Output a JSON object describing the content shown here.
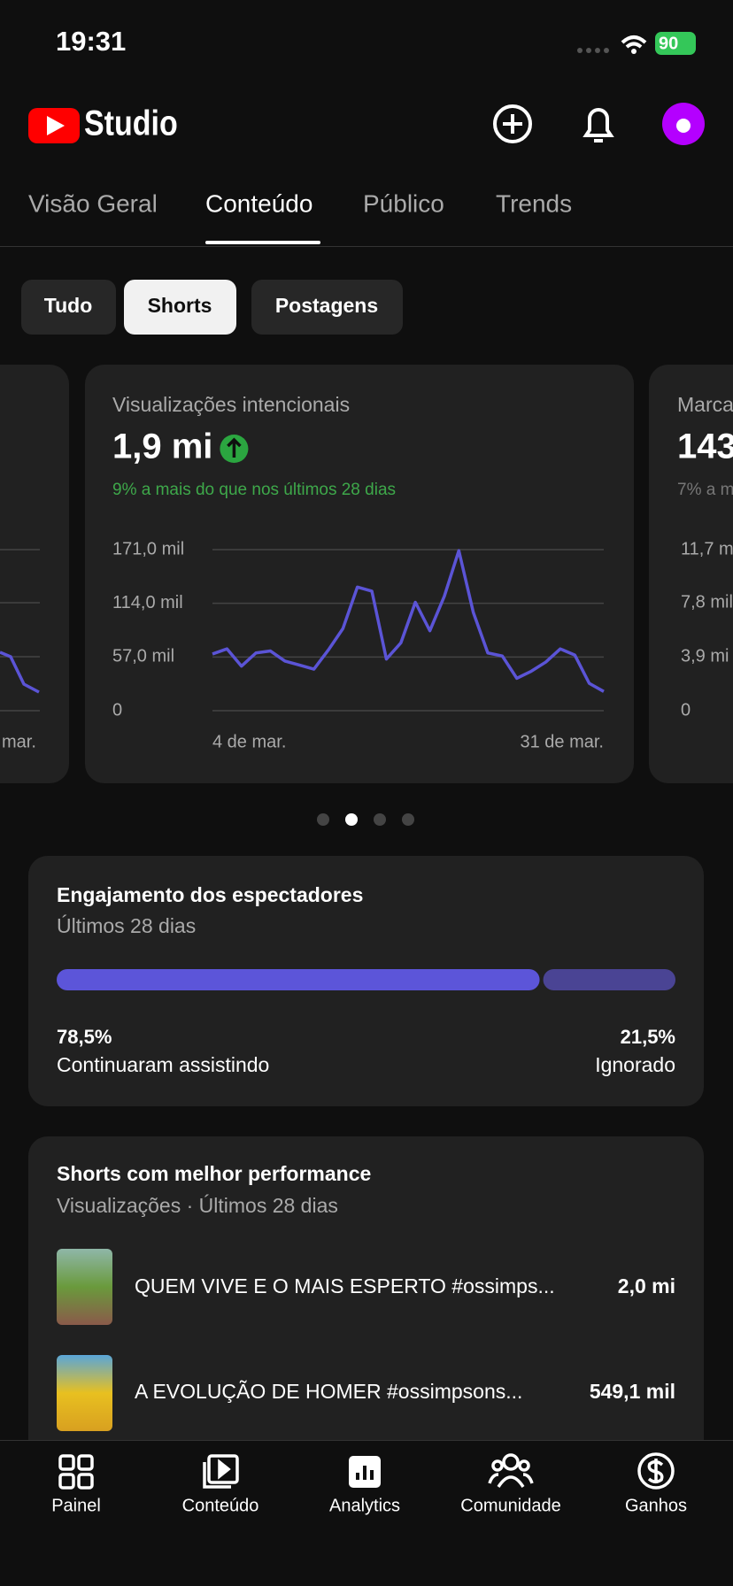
{
  "status": {
    "time": "19:31",
    "battery": "90"
  },
  "header": {
    "logo": "Studio"
  },
  "tabs": [
    "Visão Geral",
    "Conteúdo",
    "Público",
    "Trends"
  ],
  "chips": [
    "Tudo",
    "Shorts",
    "Postagens"
  ],
  "left_card": {
    "x_label": "mar."
  },
  "chart_data": {
    "type": "line",
    "title": "Visualizações intencionais",
    "headline": "1,9 mi",
    "subtitle": "9% a mais do que nos últimos 28 dias",
    "categories": [
      "4 de mar.",
      null,
      null,
      null,
      null,
      null,
      null,
      null,
      null,
      null,
      null,
      null,
      null,
      null,
      null,
      null,
      null,
      null,
      null,
      null,
      null,
      null,
      null,
      null,
      null,
      null,
      null,
      "31 de mar."
    ],
    "values": [
      60.2,
      65.6,
      47.3,
      61.3,
      63.4,
      52.7,
      48.4,
      44.1,
      64.5,
      87.1,
      131.2,
      126.9,
      54.8,
      72.0,
      115.1,
      84.9,
      121.5,
      169.9,
      104.3,
      61.3,
      58.1,
      34.4,
      41.9,
      51.6,
      65.6,
      59.1,
      29.0,
      20.4
    ],
    "color": "#5b54d6",
    "ylim": [
      0,
      171
    ],
    "yticks": [
      0,
      {
        "value": 57,
        "label": "57,0 mil"
      },
      {
        "value": 114,
        "label": "114,0 mil"
      },
      {
        "value": 171,
        "label": "171,0 mil"
      }
    ],
    "grid": true
  },
  "right_card": {
    "title": "Marca",
    "headline": "143",
    "subtitle": "7% a m",
    "yticks": [
      "11,7 m",
      "7,8 mil",
      "3,9 mi",
      "0"
    ]
  },
  "engagement": {
    "title": "Engajamento dos espectadores",
    "subtitle": "Últimos 28 dias",
    "items": [
      {
        "value": 78.5,
        "value_label": "78,5%",
        "label": "Continuaram assistindo",
        "color": "#5c55d9"
      },
      {
        "value": 21.5,
        "value_label": "21,5%",
        "label": "Ignorado",
        "color": "#4a4494"
      }
    ]
  },
  "top_shorts": {
    "title": "Shorts com melhor performance",
    "subtitle": "Visualizações · Últimos 28 dias",
    "items": [
      {
        "title": "QUEM VIVE E O MAIS ESPERTO #ossimps...",
        "views": "2,0 mi"
      },
      {
        "title": "A EVOLUÇÃO DE HOMER #ossimpsons...",
        "views": "549,1 mil"
      }
    ]
  },
  "nav": [
    "Painel",
    "Conteúdo",
    "Analytics",
    "Comunidade",
    "Ganhos"
  ]
}
